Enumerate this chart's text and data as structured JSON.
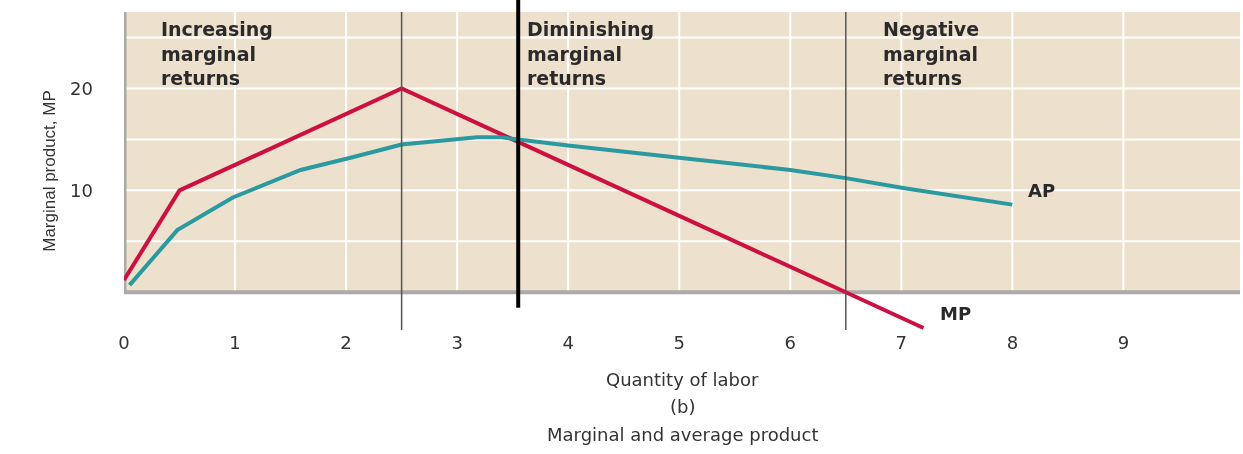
{
  "chart_data": {
    "type": "line",
    "xlabel": "Quantity of labor",
    "ylabel": "Marginal product, MP",
    "xlim": [
      0,
      10.05
    ],
    "ylim": [
      -3.7,
      27.5
    ],
    "xticks": [
      0,
      1,
      2,
      3,
      4,
      5,
      6,
      7,
      8,
      9
    ],
    "yticks": [
      {
        "value": 5,
        "label": null
      },
      10,
      {
        "value": 15,
        "label": null
      },
      20,
      {
        "value": 25,
        "label": null
      }
    ],
    "grid": true,
    "legend": false,
    "line_style": "solid",
    "marker": "none",
    "series": [
      {
        "name": "MP",
        "color": "#cc1040",
        "x": [
          0,
          0.5,
          2.5,
          6.5,
          7.2
        ],
        "values": [
          1.2,
          10,
          20,
          0,
          -3.5
        ]
      },
      {
        "name": "AP",
        "color": "#2a9aa0",
        "x": [
          0.05,
          0.48,
          0.98,
          1.59,
          2.04,
          2.5,
          3.18,
          3.4,
          4,
          5,
          6,
          6.5,
          7.03,
          8
        ],
        "values": [
          0.7,
          6.1,
          9.3,
          12.0,
          13.2,
          14.5,
          15.2,
          15.2,
          14.4,
          13.2,
          12.0,
          11.2,
          10.2,
          8.6
        ]
      }
    ],
    "ref_lines": [
      {
        "axis": "x",
        "value": 2.5,
        "color": "#555555"
      },
      {
        "axis": "x",
        "value": 6.5,
        "color": "#555555"
      },
      {
        "axis": "x",
        "value": 3.55,
        "color": "#000000"
      }
    ],
    "bands": [
      {
        "axis": "x",
        "from": 0,
        "to": 2.5,
        "label": "Increasing marginal returns",
        "color": "#ede0cc"
      },
      {
        "axis": "x",
        "from": 2.5,
        "to": 6.5,
        "label": "Diminishing marginal returns",
        "color": "#ede0cc"
      },
      {
        "axis": "x",
        "from": 6.5,
        "to": 10.05,
        "label": "Negative marginal returns",
        "color": "#ede0cc"
      }
    ],
    "annotations": [
      "(b)",
      "Marginal and average product"
    ]
  }
}
